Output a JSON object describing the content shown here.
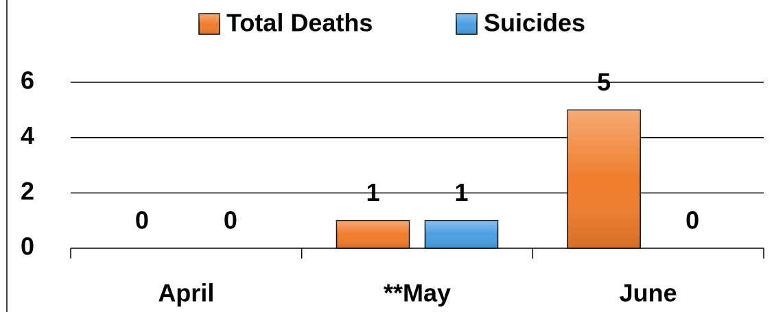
{
  "chart_data": {
    "type": "bar",
    "categories": [
      "April",
      "**May",
      "June"
    ],
    "series": [
      {
        "name": "Total Deaths",
        "color": "#f07d2c",
        "values": [
          0,
          1,
          5
        ]
      },
      {
        "name": "Suicides",
        "color": "#4b9fe1",
        "values": [
          0,
          1,
          0
        ]
      }
    ],
    "ylim": [
      0,
      6
    ],
    "yticks": [
      0,
      2,
      4,
      6
    ],
    "grid": true,
    "legend": "top"
  }
}
